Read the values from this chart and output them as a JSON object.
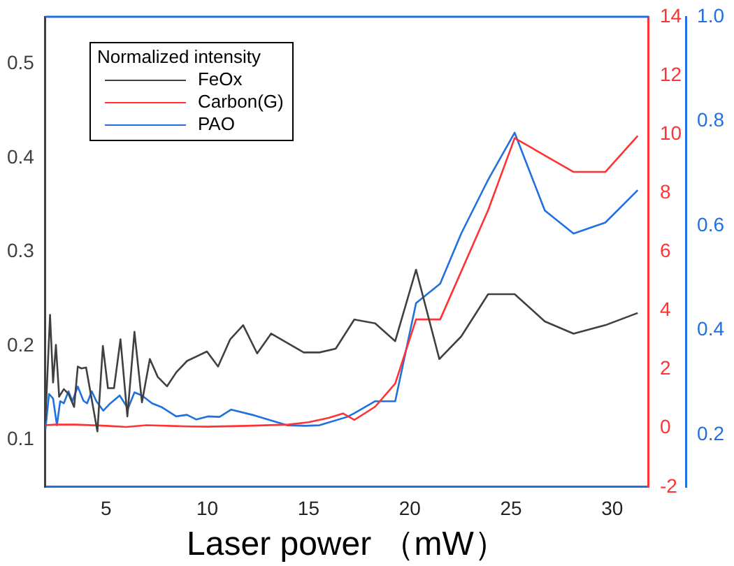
{
  "chart_data": {
    "type": "line",
    "xlabel": "Laser power （mW）",
    "legend_title": "Normalized intensity",
    "legend": "top left",
    "grid": false,
    "marker": "none",
    "line_style": "solid",
    "xlim": [
      2,
      31.8
    ],
    "xticks": [
      5,
      10,
      15,
      20,
      25,
      30
    ],
    "ylim": [
      0.05,
      0.55
    ],
    "yticks": [
      0.1,
      0.2,
      0.3,
      0.4,
      0.5
    ],
    "y2lim": [
      -2,
      14
    ],
    "y2ticks": [
      -2,
      0,
      2,
      4,
      6,
      8,
      10,
      12,
      14
    ],
    "y3lim": [
      0.1,
      1.0
    ],
    "y3ticks": [
      0.2,
      0.4,
      0.6,
      0.8,
      {
        "value": 1.0,
        "label": "1.0"
      }
    ],
    "series": [
      {
        "name": "FeOx",
        "color": "#404040",
        "x": [
          2.0,
          2.23,
          2.38,
          2.52,
          2.68,
          2.91,
          3.14,
          3.42,
          3.6,
          3.78,
          4.01,
          4.57,
          4.84,
          5.09,
          5.39,
          5.71,
          6.05,
          6.4,
          6.77,
          7.16,
          7.55,
          8.01,
          8.47,
          9.0,
          9.98,
          10.53,
          11.13,
          11.77,
          12.46,
          13.15,
          14.76,
          15.54,
          16.34,
          17.26,
          18.29,
          19.28,
          20.31,
          21.46,
          22.54,
          23.87,
          25.18,
          26.67,
          28.09,
          29.66,
          31.26
        ],
        "values": [
          0.12,
          0.233,
          0.161,
          0.201,
          0.146,
          0.154,
          0.149,
          0.135,
          0.178,
          0.176,
          0.177,
          0.109,
          0.2,
          0.155,
          0.155,
          0.207,
          0.125,
          0.215,
          0.14,
          0.186,
          0.167,
          0.157,
          0.172,
          0.184,
          0.194,
          0.178,
          0.207,
          0.222,
          0.192,
          0.213,
          0.193,
          0.193,
          0.197,
          0.228,
          0.224,
          0.205,
          0.281,
          0.186,
          0.21,
          0.255,
          0.255,
          0.226,
          0.213,
          0.222,
          0.235
        ]
      },
      {
        "name": "Carbon(G)",
        "color": "#ff3333",
        "axis": "y2",
        "x": [
          2.0,
          2.5,
          3.5,
          5.0,
          6.0,
          7.0,
          9.0,
          10.0,
          12.0,
          14.0,
          15.0,
          16.0,
          16.7,
          17.26,
          18.29,
          19.28,
          20.31,
          21.5,
          23.87,
          25.18,
          28.09,
          29.66,
          31.26
        ],
        "values": [
          0.1,
          0.12,
          0.12,
          0.08,
          0.04,
          0.1,
          0.06,
          0.05,
          0.08,
          0.12,
          0.2,
          0.35,
          0.5,
          0.28,
          0.73,
          1.52,
          3.7,
          3.7,
          7.42,
          9.87,
          8.72,
          8.72,
          9.95
        ]
      },
      {
        "name": "PAO",
        "color": "#2070e0",
        "axis": "y3",
        "x": [
          2.0,
          2.18,
          2.38,
          2.57,
          2.73,
          2.91,
          3.14,
          3.33,
          3.6,
          3.88,
          4.06,
          4.29,
          4.52,
          4.86,
          5.21,
          5.67,
          6.08,
          6.4,
          6.77,
          7.27,
          7.73,
          8.46,
          8.99,
          9.46,
          10.03,
          10.6,
          11.18,
          12.32,
          13.93,
          14.85,
          15.54,
          16.91,
          17.26,
          18.29,
          19.28,
          20.31,
          21.5,
          22.54,
          23.87,
          25.18,
          26.67,
          28.09,
          29.66,
          31.26
        ],
        "values": [
          0.209,
          0.278,
          0.269,
          0.218,
          0.264,
          0.26,
          0.283,
          0.264,
          0.292,
          0.265,
          0.26,
          0.283,
          0.264,
          0.246,
          0.26,
          0.275,
          0.25,
          0.281,
          0.275,
          0.26,
          0.253,
          0.235,
          0.238,
          0.229,
          0.235,
          0.234,
          0.248,
          0.237,
          0.218,
          0.217,
          0.218,
          0.234,
          0.241,
          0.264,
          0.264,
          0.452,
          0.489,
          0.585,
          0.688,
          0.778,
          0.629,
          0.585,
          0.606,
          0.668
        ]
      }
    ]
  }
}
